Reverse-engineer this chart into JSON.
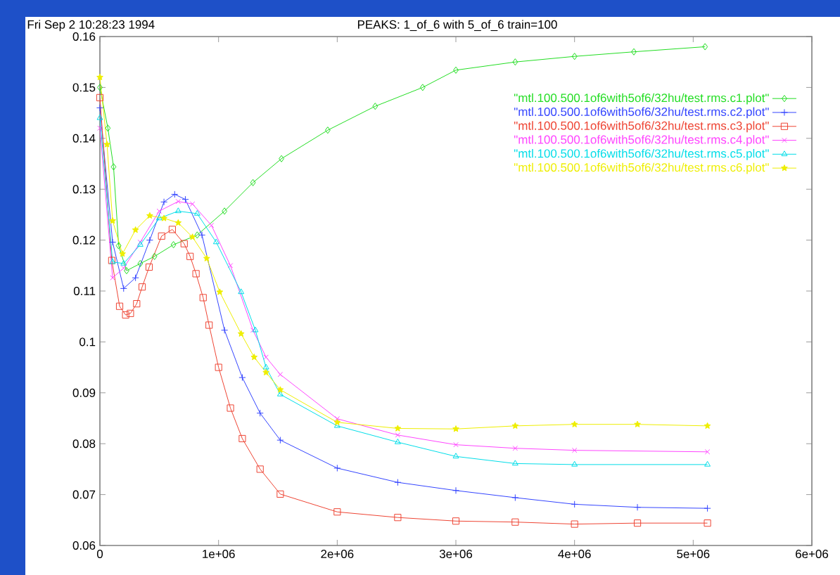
{
  "chart_data": {
    "type": "line",
    "title": "PEAKS: 1_of_6 with 5_of_6 train=100",
    "annotations": [
      "Fri Sep  2 10:28:23 1994"
    ],
    "xlim": [
      0,
      6000000
    ],
    "ylim": [
      0.06,
      0.16
    ],
    "xticks": [
      {
        "value": 0,
        "label": "0"
      },
      {
        "value": 1000000,
        "label": "1e+06"
      },
      {
        "value": 2000000,
        "label": "2e+06"
      },
      {
        "value": 3000000,
        "label": "3e+06"
      },
      {
        "value": 4000000,
        "label": "4e+06"
      },
      {
        "value": 5000000,
        "label": "5e+06"
      },
      {
        "value": 6000000,
        "label": "6e+06"
      }
    ],
    "yticks": [
      0.06,
      0.07,
      0.08,
      0.09,
      0.1,
      0.11,
      0.12,
      0.13,
      0.14,
      0.15,
      0.16
    ],
    "grid": false,
    "legend": "top right",
    "line_style": "solid",
    "series": [
      {
        "name": "\"mtl.100.500.1of6with5of6/32hu/test.rms.c1.plot\"",
        "color": "#22dd22",
        "marker": "diamond",
        "x": [
          0,
          67000,
          115000,
          158000,
          225000,
          340000,
          460000,
          620000,
          820000,
          1050000,
          1290000,
          1530000,
          1920000,
          2320000,
          2720000,
          3000000,
          3500000,
          4000000,
          4500000,
          5100000
        ],
        "values": [
          0.15,
          0.142,
          0.1344,
          0.1189,
          0.114,
          0.1154,
          0.1168,
          0.1191,
          0.121,
          0.1257,
          0.1313,
          0.136,
          0.1416,
          0.1463,
          0.15,
          0.1534,
          0.155,
          0.1561,
          0.157,
          0.158
        ]
      },
      {
        "name": "\"mtl.100.500.1of6with5of6/32hu/test.rms.c2.plot\"",
        "color": "#3344ff",
        "marker": "plus",
        "x": [
          0,
          107000,
          200000,
          300000,
          420000,
          540000,
          630000,
          720000,
          860000,
          1050000,
          1200000,
          1350000,
          1520000,
          2000000,
          2510000,
          3000000,
          3500000,
          4000000,
          4530000,
          5120000
        ],
        "values": [
          0.146,
          0.1196,
          0.1105,
          0.1126,
          0.12,
          0.1275,
          0.129,
          0.128,
          0.121,
          0.1023,
          0.093,
          0.086,
          0.0807,
          0.0752,
          0.0724,
          0.0708,
          0.0694,
          0.0681,
          0.0675,
          0.0673
        ]
      },
      {
        "name": "\"mtl.100.500.1of6with5of6/32hu/test.rms.c3.plot\"",
        "color": "#ee4433",
        "marker": "square",
        "x": [
          0,
          100000,
          166000,
          217000,
          257000,
          310000,
          356000,
          415000,
          520000,
          610000,
          710000,
          760000,
          810000,
          870000,
          920000,
          1000000,
          1100000,
          1200000,
          1350000,
          1520000,
          2000000,
          2510000,
          3000000,
          3500000,
          4000000,
          4530000,
          5120000
        ],
        "values": [
          0.148,
          0.116,
          0.107,
          0.1053,
          0.1056,
          0.1075,
          0.1108,
          0.1147,
          0.1208,
          0.1221,
          0.1193,
          0.1168,
          0.1134,
          0.1087,
          0.1033,
          0.095,
          0.087,
          0.081,
          0.075,
          0.0701,
          0.0666,
          0.0655,
          0.0648,
          0.0646,
          0.0642,
          0.0644,
          0.0644
        ]
      },
      {
        "name": "\"mtl.100.500.1of6with5of6/32hu/test.rms.c4.plot\"",
        "color": "#ff44ff",
        "marker": "cross",
        "x": [
          0,
          107000,
          200000,
          340000,
          500000,
          660000,
          780000,
          940000,
          1100000,
          1290000,
          1400000,
          1520000,
          2000000,
          2510000,
          3000000,
          3500000,
          4000000,
          5120000
        ],
        "values": [
          0.142,
          0.1126,
          0.1145,
          0.1196,
          0.1257,
          0.1276,
          0.1271,
          0.1229,
          0.115,
          0.1023,
          0.097,
          0.0936,
          0.0849,
          0.0817,
          0.0798,
          0.0791,
          0.0787,
          0.0784
        ]
      },
      {
        "name": "\"mtl.100.500.1of6with5of6/32hu/test.rms.c5.plot\"",
        "color": "#00dde8",
        "marker": "triangle",
        "x": [
          0,
          107000,
          200000,
          340000,
          500000,
          660000,
          820000,
          980000,
          1190000,
          1310000,
          1400000,
          1520000,
          2000000,
          2510000,
          3000000,
          3500000,
          4000000,
          5120000
        ],
        "values": [
          0.144,
          0.1157,
          0.1154,
          0.1191,
          0.1243,
          0.1257,
          0.1252,
          0.1196,
          0.1098,
          0.1023,
          0.095,
          0.0897,
          0.0835,
          0.0803,
          0.0775,
          0.0761,
          0.0759,
          0.0759
        ]
      },
      {
        "name": "\"mtl.100.500.1of6with5of6/32hu/test.rms.c6.plot\"",
        "color": "#eeee00",
        "marker": "star",
        "x": [
          0,
          60000,
          107000,
          190000,
          300000,
          420000,
          540000,
          660000,
          780000,
          900000,
          1010000,
          1190000,
          1300000,
          1400000,
          1520000,
          2000000,
          2510000,
          3000000,
          3500000,
          4000000,
          4530000,
          5120000
        ],
        "values": [
          0.152,
          0.1388,
          0.1238,
          0.1173,
          0.122,
          0.1248,
          0.1243,
          0.1234,
          0.1206,
          0.1164,
          0.1098,
          0.1016,
          0.097,
          0.094,
          0.0906,
          0.0842,
          0.083,
          0.0829,
          0.0835,
          0.0838,
          0.0838,
          0.0835
        ]
      }
    ]
  }
}
